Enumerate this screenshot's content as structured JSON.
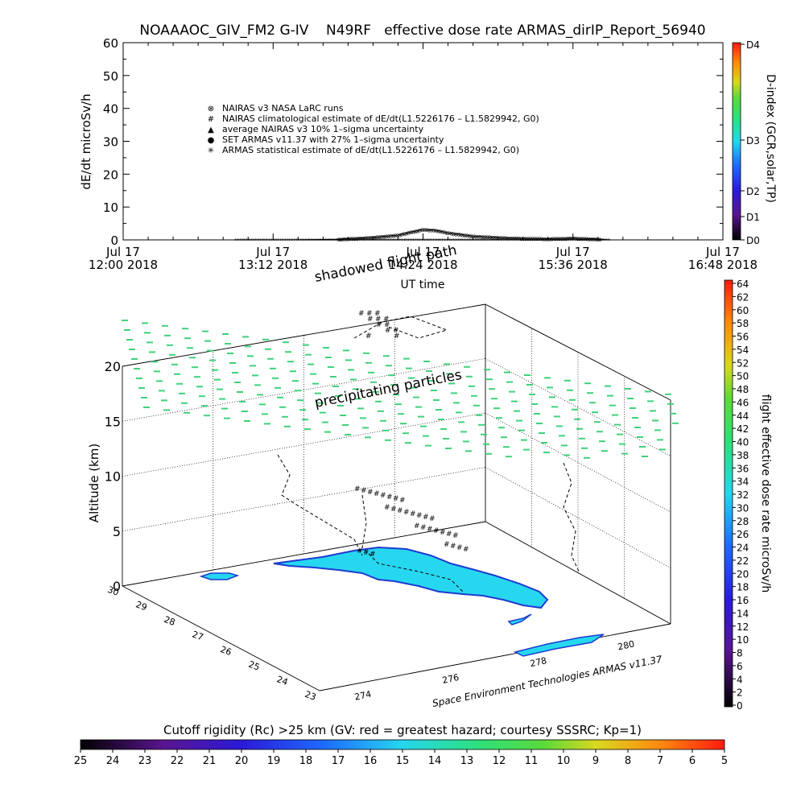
{
  "title": "NOAAAOC_GIV_FM2 G-IV    N49RF   effective dose rate ARMAS_dirIP_Report_56940",
  "chart_data": [
    {
      "type": "line",
      "ylabel": "dE/dt microSv/h",
      "xlabel": "UT time",
      "ylim": [
        0,
        60
      ],
      "y_ticks": [
        "0",
        "10",
        "20",
        "30",
        "40",
        "50",
        "60"
      ],
      "x_ticks": [
        {
          "line1": "Jul 17",
          "line2": "12:00 2018"
        },
        {
          "line1": "Jul 17",
          "line2": "13:12 2018"
        },
        {
          "line1": "Jul 17",
          "line2": "14:24 2018"
        },
        {
          "line1": "Jul 17",
          "line2": "15:36 2018"
        },
        {
          "line1": "Jul 17",
          "line2": "16:48 2018"
        }
      ],
      "legend": [
        {
          "marker": "⊗",
          "label": "NAIRAS v3 NASA LaRC runs"
        },
        {
          "marker": "#",
          "label": "NAIRAS climatological estimate of dE/dt(L1.5226176 – L1.5829942, G0)"
        },
        {
          "marker": "▲",
          "label": "average NAIRAS v3 10% 1–sigma uncertainty"
        },
        {
          "marker": "●",
          "label": "SET ARMAS v11.37 with 27% 1–sigma uncertainty"
        },
        {
          "marker": "✳",
          "label": "ARMAS statistical estimate of dE/dt(L1.5226176 – L1.5829942, G0)"
        }
      ],
      "legend_marker_colors": [
        "#000000",
        "#000000",
        "#000000",
        "#1a3cff",
        "#000000"
      ],
      "series": [
        {
          "x_hours": [
            12.9,
            13.3,
            13.7,
            14.0,
            14.2,
            14.3,
            14.4,
            14.5,
            14.6,
            14.8,
            15.1,
            15.4,
            15.6,
            15.8,
            15.9
          ],
          "values": [
            0,
            0,
            0.2,
            0.8,
            1.5,
            2.4,
            3.2,
            3.0,
            2.2,
            1.2,
            0.6,
            0.4,
            0.6,
            0.3,
            0
          ]
        }
      ],
      "d_index": {
        "label": "D-index (GCR,solar,TP)",
        "ticks": [
          "D0",
          "D1",
          "D2",
          "D3",
          "D4"
        ]
      }
    },
    {
      "type": "scatter",
      "zlabel": "Altitude (km)",
      "z_ticks": [
        "0",
        "5",
        "10",
        "15",
        "20"
      ],
      "lat_ticks": [
        "30",
        "29",
        "28",
        "27",
        "26",
        "25",
        "24",
        "23"
      ],
      "lon_ticks": [
        "274",
        "276",
        "278",
        "280"
      ],
      "annotations": [
        "shadowed flight path",
        "precipitating particles"
      ],
      "credit": "Space Environment Technologies ARMAS v11.37",
      "dose_colorbar": {
        "label": "flight effective dose rate microSv/h",
        "ticks": [
          "0",
          "2",
          "4",
          "6",
          "8",
          "10",
          "12",
          "14",
          "16",
          "18",
          "20",
          "22",
          "24",
          "26",
          "28",
          "30",
          "32",
          "34",
          "36",
          "38",
          "40",
          "42",
          "44",
          "46",
          "48",
          "50",
          "52",
          "54",
          "56",
          "58",
          "60",
          "62",
          "64"
        ]
      }
    },
    {
      "type": "heatmap",
      "label": "Cutoff rigidity (Rc) >25 km (GV: red = greatest hazard; courtesy SSSRC; Kp=1)",
      "ticks": [
        "25",
        "24",
        "23",
        "22",
        "21",
        "20",
        "19",
        "18",
        "17",
        "16",
        "15",
        "14",
        "13",
        "12",
        "11",
        "10",
        "9",
        "8",
        "7",
        "6",
        "5"
      ]
    }
  ],
  "colors": {
    "precip_dash": "#3ed27a",
    "land_fill": "#27d7f0",
    "land_edge": "#1e3bd0",
    "flight_path": "#000000"
  }
}
